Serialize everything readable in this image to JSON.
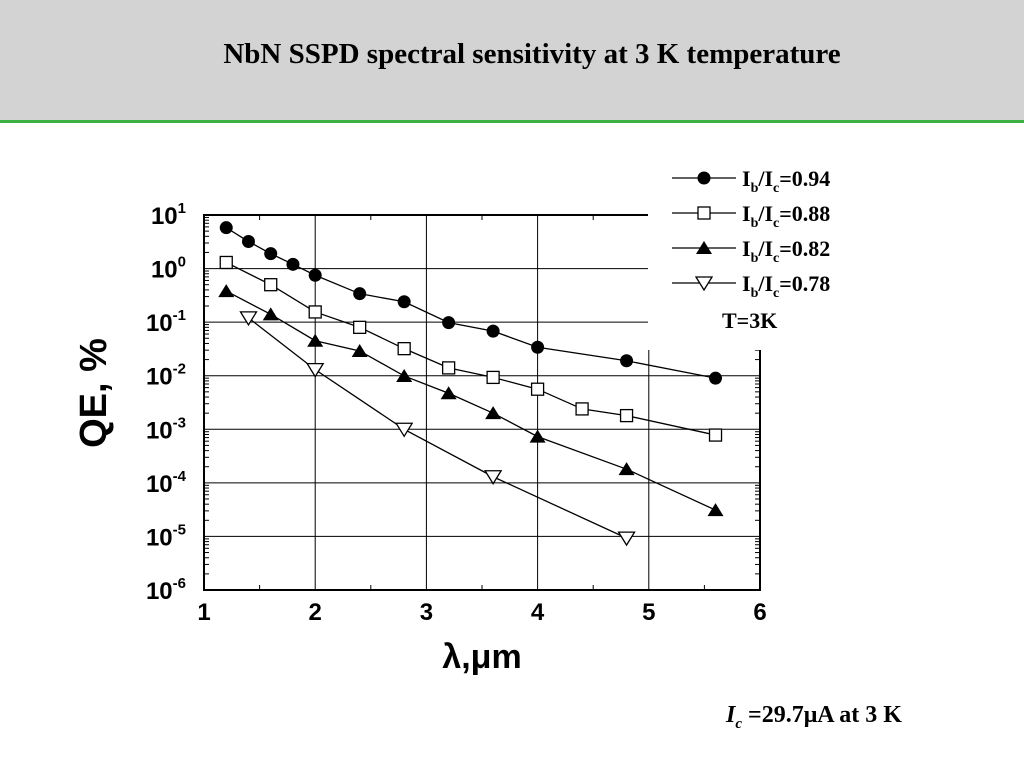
{
  "slide": {
    "title": "NbN SSPD spectral sensitivity at 3 K temperature",
    "footnote": {
      "symbol": "I",
      "subscript": "c",
      "text": " =29.7μA at 3 K"
    }
  },
  "chart_data": {
    "type": "scatter",
    "xlabel": "λ,μm",
    "ylabel": "QE, %",
    "xlim": [
      1,
      6
    ],
    "ylim": [
      1e-06,
      10
    ],
    "yscale": "log",
    "grid": true,
    "legend_position": "top-right",
    "x_ticks": [
      {
        "value": 1,
        "label": "1"
      },
      {
        "value": 2,
        "label": "2"
      },
      {
        "value": 3,
        "label": "3"
      },
      {
        "value": 4,
        "label": "4"
      },
      {
        "value": 5,
        "label": "5"
      },
      {
        "value": 6,
        "label": "6"
      }
    ],
    "y_ticks": [
      {
        "value": 10,
        "base": "10",
        "exp": "1"
      },
      {
        "value": 1,
        "base": "10",
        "exp": "0"
      },
      {
        "value": 0.1,
        "base": "10",
        "exp": "-1"
      },
      {
        "value": 0.01,
        "base": "10",
        "exp": "-2"
      },
      {
        "value": 0.001,
        "base": "10",
        "exp": "-3"
      },
      {
        "value": 0.0001,
        "base": "10",
        "exp": "-4"
      },
      {
        "value": 1e-05,
        "base": "10",
        "exp": "-5"
      },
      {
        "value": 1e-06,
        "base": "10",
        "exp": "-6"
      }
    ],
    "legend_note": "T=3K",
    "series": [
      {
        "label_main": "I",
        "label_sub1": "b",
        "label_mid": "/I",
        "label_sub2": "c",
        "label_val": "=0.94",
        "marker": "circle-filled",
        "x": [
          1.2,
          1.4,
          1.6,
          1.8,
          2.0,
          2.4,
          2.8,
          3.2,
          3.6,
          4.0,
          4.8,
          5.6
        ],
        "y": [
          5.8,
          3.2,
          1.9,
          1.2,
          0.75,
          0.34,
          0.24,
          0.098,
          0.068,
          0.034,
          0.019,
          0.009
        ]
      },
      {
        "label_main": "I",
        "label_sub1": "b",
        "label_mid": "/I",
        "label_sub2": "c",
        "label_val": "=0.88",
        "marker": "square-open",
        "x": [
          1.2,
          1.6,
          2.0,
          2.4,
          2.8,
          3.2,
          3.6,
          4.0,
          4.4,
          4.8,
          5.6
        ],
        "y": [
          1.3,
          0.5,
          0.155,
          0.08,
          0.032,
          0.014,
          0.0093,
          0.0056,
          0.0024,
          0.0018,
          0.00078
        ]
      },
      {
        "label_main": "I",
        "label_sub1": "b",
        "label_mid": "/I",
        "label_sub2": "c",
        "label_val": "=0.82",
        "marker": "triangle-up-filled",
        "x": [
          1.2,
          1.6,
          2.0,
          2.4,
          2.8,
          3.2,
          3.6,
          4.0,
          4.8,
          5.6
        ],
        "y": [
          0.38,
          0.14,
          0.045,
          0.029,
          0.0099,
          0.0047,
          0.002,
          0.00073,
          0.00018,
          3.1e-05
        ]
      },
      {
        "label_main": "I",
        "label_sub1": "b",
        "label_mid": "/I",
        "label_sub2": "c",
        "label_val": "=0.78",
        "marker": "triangle-down-open",
        "x": [
          1.4,
          2.0,
          2.8,
          3.6,
          4.8
        ],
        "y": [
          0.12,
          0.013,
          0.001,
          0.00013,
          9.3e-06
        ]
      }
    ]
  }
}
